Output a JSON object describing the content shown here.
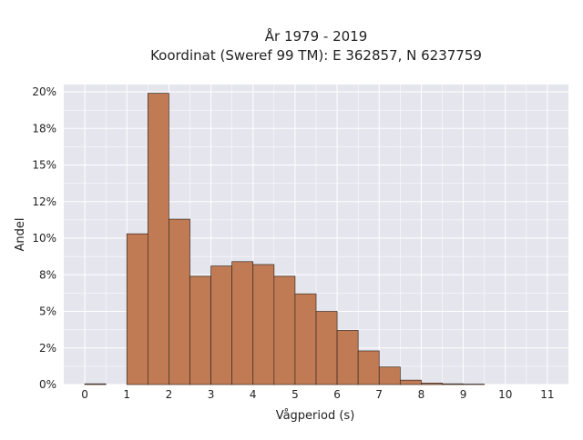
{
  "chart_data": {
    "type": "bar",
    "title_lines": [
      "År 1979 - 2019",
      "Koordinat (Sweref 99 TM): E 362857, N 6237759"
    ],
    "xlabel": "Vågperiod (s)",
    "ylabel": "Andel",
    "x_ticks": [
      "0",
      "1",
      "2",
      "3",
      "4",
      "5",
      "6",
      "7",
      "8",
      "9",
      "10",
      "11"
    ],
    "y_tick_values": [
      0,
      2.5,
      5,
      7.5,
      10,
      12.5,
      15,
      17.5,
      20
    ],
    "y_ticks": [
      "0%",
      "2%",
      "5%",
      "8%",
      "10%",
      "12%",
      "15%",
      "18%",
      "20%"
    ],
    "xlim": [
      -0.5,
      11.5
    ],
    "ylim": [
      0,
      20.5
    ],
    "bin_width": 0.5,
    "bins": [
      {
        "x_start": 0.0,
        "value": 0.05
      },
      {
        "x_start": 1.0,
        "value": 10.3
      },
      {
        "x_start": 1.5,
        "value": 19.9
      },
      {
        "x_start": 2.0,
        "value": 11.3
      },
      {
        "x_start": 2.5,
        "value": 7.4
      },
      {
        "x_start": 3.0,
        "value": 8.1
      },
      {
        "x_start": 3.5,
        "value": 8.4
      },
      {
        "x_start": 4.0,
        "value": 8.2
      },
      {
        "x_start": 4.5,
        "value": 7.4
      },
      {
        "x_start": 5.0,
        "value": 6.2
      },
      {
        "x_start": 5.5,
        "value": 5.0
      },
      {
        "x_start": 6.0,
        "value": 3.7
      },
      {
        "x_start": 6.5,
        "value": 2.3
      },
      {
        "x_start": 7.0,
        "value": 1.2
      },
      {
        "x_start": 7.5,
        "value": 0.3
      },
      {
        "x_start": 8.0,
        "value": 0.1
      },
      {
        "x_start": 8.5,
        "value": 0.05
      },
      {
        "x_start": 9.0,
        "value": 0.03
      }
    ],
    "grid": true,
    "colors": {
      "bar_fill": "#c07b55",
      "bar_stroke": "#3a2a20",
      "plot_bg": "#e5e5ee",
      "grid": "#ffffff"
    }
  }
}
